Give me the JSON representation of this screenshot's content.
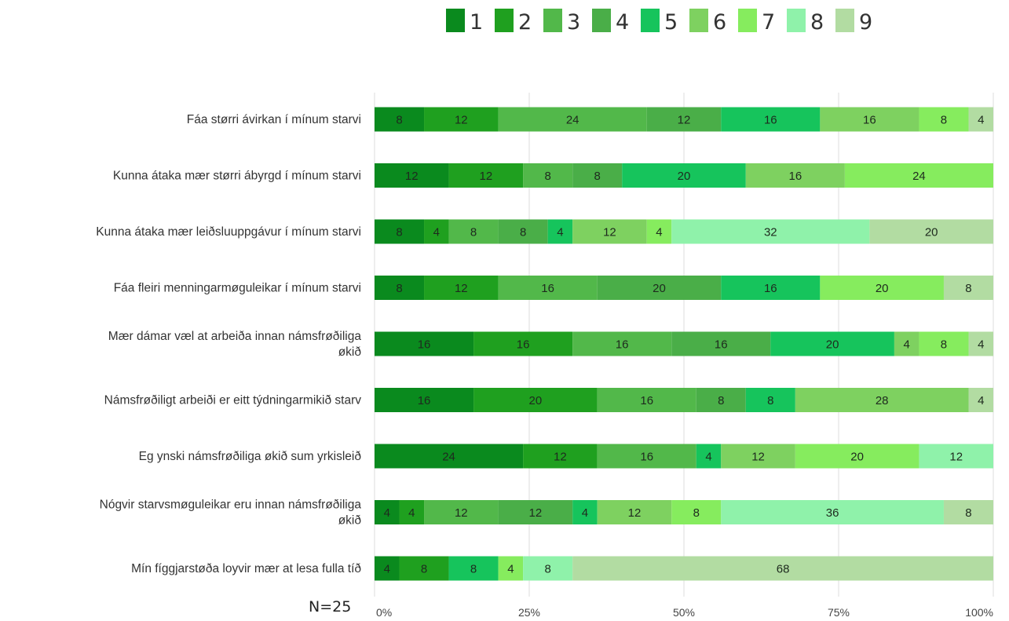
{
  "chart_data": {
    "type": "bar",
    "orientation": "horizontal-stacked",
    "title": "",
    "xlabel": "",
    "ylabel": "",
    "xlim": [
      0,
      100
    ],
    "x_ticks": [
      "0%",
      "25%",
      "50%",
      "75%",
      "100%"
    ],
    "grid": true,
    "legend_position": "top-center",
    "note": "N=25",
    "categories": [
      [
        "Fáa størri ávirkan í mínum starvi"
      ],
      [
        "Kunna átaka mær størri ábyrgd í mínum starvi"
      ],
      [
        "Kunna átaka mær leiðsluuppgávur í mínum starvi"
      ],
      [
        "Fáa fleiri menningarmøguleikar í mínum starvi"
      ],
      [
        "Mær dámar væl at arbeiða innan námsfrøðiliga",
        "økið"
      ],
      [
        "Námsfrøðiligt arbeiði er eitt týdningarmikið starv"
      ],
      [
        "Eg ynski námsfrøðiliga økið sum yrkisleið"
      ],
      [
        "Nógvir starvsmøguleikar eru innan námsfrøðiliga",
        "økið"
      ],
      [
        "Mín fíggjarstøða loyvir mær at lesa fulla tíð"
      ]
    ],
    "series": [
      {
        "name": "1",
        "color": "#0a8a1e",
        "values": [
          8,
          12,
          8,
          8,
          16,
          16,
          24,
          4,
          4
        ]
      },
      {
        "name": "2",
        "color": "#1fa01f",
        "values": [
          12,
          12,
          4,
          12,
          16,
          20,
          12,
          4,
          8
        ]
      },
      {
        "name": "3",
        "color": "#52b84a",
        "values": [
          24,
          8,
          8,
          16,
          16,
          16,
          16,
          12,
          0
        ]
      },
      {
        "name": "4",
        "color": "#4aae48",
        "values": [
          12,
          8,
          8,
          20,
          16,
          8,
          0,
          12,
          0
        ]
      },
      {
        "name": "5",
        "color": "#16c45c",
        "values": [
          16,
          20,
          4,
          16,
          20,
          8,
          4,
          4,
          8
        ]
      },
      {
        "name": "6",
        "color": "#7ed160",
        "values": [
          16,
          16,
          12,
          0,
          4,
          28,
          12,
          12,
          0
        ]
      },
      {
        "name": "7",
        "color": "#86ec5e",
        "values": [
          8,
          24,
          4,
          20,
          8,
          0,
          20,
          8,
          4
        ]
      },
      {
        "name": "8",
        "color": "#8ff2aa",
        "values": [
          0,
          0,
          32,
          0,
          0,
          0,
          12,
          36,
          8
        ]
      },
      {
        "name": "9",
        "color": "#b2dca2",
        "values": [
          4,
          0,
          20,
          8,
          4,
          4,
          0,
          8,
          68
        ]
      }
    ]
  }
}
